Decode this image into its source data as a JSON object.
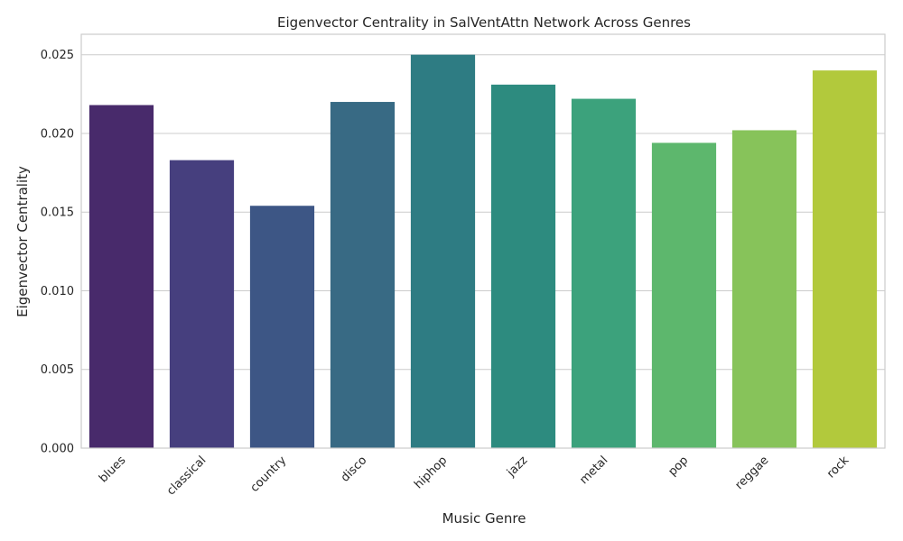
{
  "chart_data": {
    "type": "bar",
    "title": "Eigenvector Centrality in SalVentAttn Network Across Genres",
    "xlabel": "Music Genre",
    "ylabel": "Eigenvector Centrality",
    "categories": [
      "blues",
      "classical",
      "country",
      "disco",
      "hiphop",
      "jazz",
      "metal",
      "pop",
      "reggae",
      "rock"
    ],
    "values": [
      0.0218,
      0.0183,
      0.0154,
      0.022,
      0.025,
      0.0231,
      0.0222,
      0.0194,
      0.0202,
      0.024
    ],
    "colors": [
      "#482a6b",
      "#463f7e",
      "#3d5685",
      "#386a84",
      "#2e7c83",
      "#2d8b7f",
      "#3ca27c",
      "#5db76d",
      "#87c35a",
      "#b2c93c"
    ],
    "ylim": [
      0,
      0.0263
    ],
    "yticks": [
      "0.000",
      "0.005",
      "0.010",
      "0.015",
      "0.020",
      "0.025"
    ],
    "ytick_values": [
      0,
      0.005,
      0.01,
      0.015,
      0.02,
      0.025
    ],
    "grid": "horizontal",
    "legend": "none"
  }
}
